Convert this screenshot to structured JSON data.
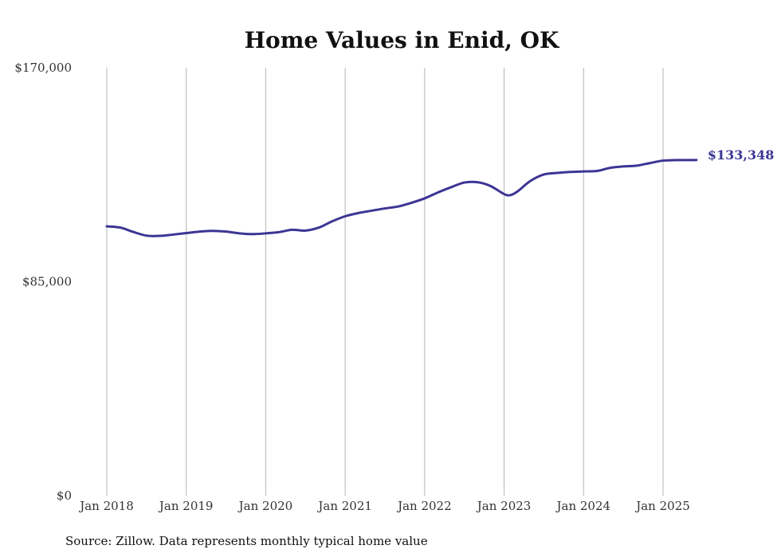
{
  "chart_data": {
    "type": "line",
    "title": "Home Values in Enid, OK",
    "source": "Source: Zillow. Data represents monthly typical home value",
    "xlabel": "",
    "ylabel": "",
    "ylim": [
      0,
      170000
    ],
    "yticks": [
      {
        "value": 0,
        "label": "$0"
      },
      {
        "value": 85000,
        "label": "$85,000"
      },
      {
        "value": 170000,
        "label": "$170,000"
      }
    ],
    "xlim": [
      2018.0,
      2025.5
    ],
    "xticks": [
      {
        "value": 2018,
        "label": "Jan 2018"
      },
      {
        "value": 2019,
        "label": "Jan 2019"
      },
      {
        "value": 2020,
        "label": "Jan 2020"
      },
      {
        "value": 2021,
        "label": "Jan 2021"
      },
      {
        "value": 2022,
        "label": "Jan 2022"
      },
      {
        "value": 2023,
        "label": "Jan 2023"
      },
      {
        "value": 2024,
        "label": "Jan 2024"
      },
      {
        "value": 2025,
        "label": "Jan 2025"
      }
    ],
    "grid": "vertical",
    "line_color": "#3d3594",
    "end_label": "$133,348",
    "series": [
      {
        "points": [
          [
            2018.0,
            107000
          ],
          [
            2018.17,
            106500
          ],
          [
            2018.33,
            104800
          ],
          [
            2018.5,
            103300
          ],
          [
            2018.67,
            103200
          ],
          [
            2018.83,
            103700
          ],
          [
            2019.0,
            104300
          ],
          [
            2019.17,
            104900
          ],
          [
            2019.33,
            105200
          ],
          [
            2019.5,
            104900
          ],
          [
            2019.67,
            104200
          ],
          [
            2019.83,
            103900
          ],
          [
            2020.0,
            104200
          ],
          [
            2020.17,
            104700
          ],
          [
            2020.33,
            105600
          ],
          [
            2020.5,
            105300
          ],
          [
            2020.67,
            106500
          ],
          [
            2020.83,
            108900
          ],
          [
            2021.0,
            111000
          ],
          [
            2021.17,
            112300
          ],
          [
            2021.33,
            113200
          ],
          [
            2021.5,
            114100
          ],
          [
            2021.67,
            114900
          ],
          [
            2021.83,
            116300
          ],
          [
            2022.0,
            118100
          ],
          [
            2022.17,
            120500
          ],
          [
            2022.33,
            122500
          ],
          [
            2022.5,
            124400
          ],
          [
            2022.67,
            124500
          ],
          [
            2022.83,
            123000
          ],
          [
            2023.0,
            119800
          ],
          [
            2023.08,
            119400
          ],
          [
            2023.17,
            120900
          ],
          [
            2023.33,
            125000
          ],
          [
            2023.5,
            127600
          ],
          [
            2023.67,
            128200
          ],
          [
            2023.83,
            128600
          ],
          [
            2024.0,
            128800
          ],
          [
            2024.17,
            129000
          ],
          [
            2024.33,
            130200
          ],
          [
            2024.5,
            130800
          ],
          [
            2024.67,
            131100
          ],
          [
            2024.83,
            132100
          ],
          [
            2025.0,
            133100
          ],
          [
            2025.17,
            133300
          ],
          [
            2025.33,
            133300
          ],
          [
            2025.42,
            133348
          ]
        ]
      }
    ]
  }
}
